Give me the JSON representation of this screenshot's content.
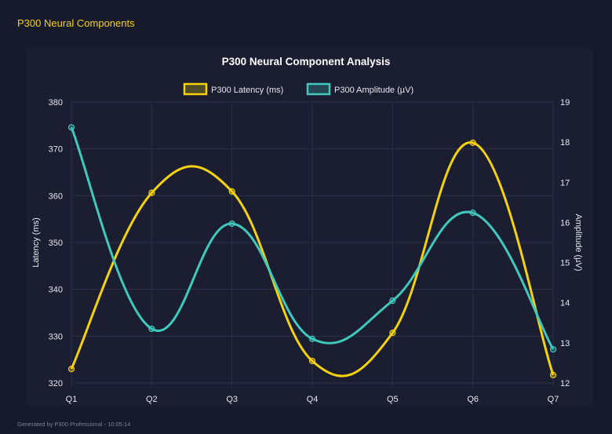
{
  "header": {
    "title": "P300 Neural Components"
  },
  "footer": {
    "text": "Generated by P300 Professional - 10:05:14"
  },
  "chart_data": {
    "type": "line",
    "title": "P300 Neural Component Analysis",
    "categories": [
      "Q1",
      "Q2",
      "Q3",
      "Q4",
      "Q5",
      "Q6",
      "Q7"
    ],
    "series": [
      {
        "name": "P300 Latency (ms)",
        "axis": "left",
        "color": "#f5d20a",
        "values": [
          323.0,
          360.6,
          360.9,
          324.7,
          330.7,
          371.3,
          321.7
        ]
      },
      {
        "name": "P300 Amplitude (µV)",
        "axis": "right",
        "color": "#40c8bd",
        "values": [
          18.37,
          13.35,
          15.97,
          13.1,
          14.05,
          16.24,
          12.84
        ]
      }
    ],
    "ylabel": "Latency (ms)",
    "y2label": "Amplitude (µV)",
    "ylim": [
      320,
      380
    ],
    "y2lim": [
      12,
      19
    ],
    "yticks": [
      "320",
      "330",
      "340",
      "350",
      "360",
      "370",
      "380"
    ],
    "y2ticks": [
      "12",
      "13",
      "14",
      "15",
      "16",
      "17",
      "18",
      "19"
    ],
    "grid": true,
    "legend": "top",
    "smooth": true
  }
}
